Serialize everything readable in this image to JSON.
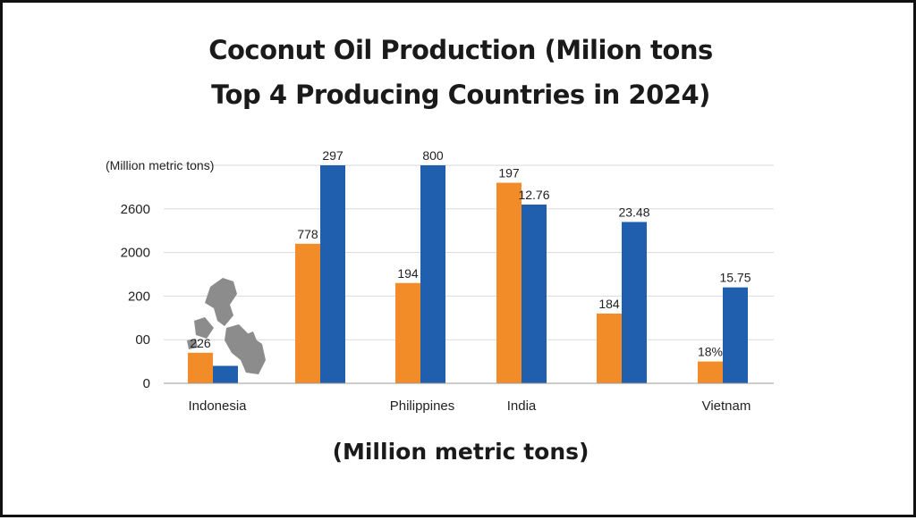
{
  "title_line1": "Coconut Oil Production (Milion tons",
  "title_line2": "Top 4 Producing Countries in 2024)",
  "caption": "(Million metric tons)",
  "chart_data": {
    "type": "bar",
    "title": "Coconut Oil Production (Milion tons Top 4 Producing Countries in 2024)",
    "ylabel": "(Million metric tons)",
    "xlabel": "(Million metric tons)",
    "y_tick_labels": [
      "0",
      "00",
      "200",
      "2000",
      "2600"
    ],
    "ylim": [
      0,
      5
    ],
    "grid": true,
    "categories": [
      "Indonesia",
      "",
      "Philippines",
      "India",
      "",
      "Vietnam"
    ],
    "series": [
      {
        "color": "#F28C28",
        "values": [
          0.7,
          3.2,
          2.3,
          4.6,
          1.6,
          0.5
        ],
        "labels": [
          "226",
          "778",
          "194",
          "197",
          "184",
          "18%"
        ]
      },
      {
        "color": "#1F5FAD",
        "values": [
          0.4,
          5.0,
          5.0,
          4.1,
          3.7,
          2.2
        ],
        "labels": [
          "",
          "297",
          "800",
          "12.76",
          "23.48",
          "15.75"
        ]
      }
    ],
    "colors": {
      "orange": "#F28C28",
      "blue": "#1F5FAD",
      "grid": "#d9d9d9",
      "map": "#8c8c8c"
    }
  }
}
